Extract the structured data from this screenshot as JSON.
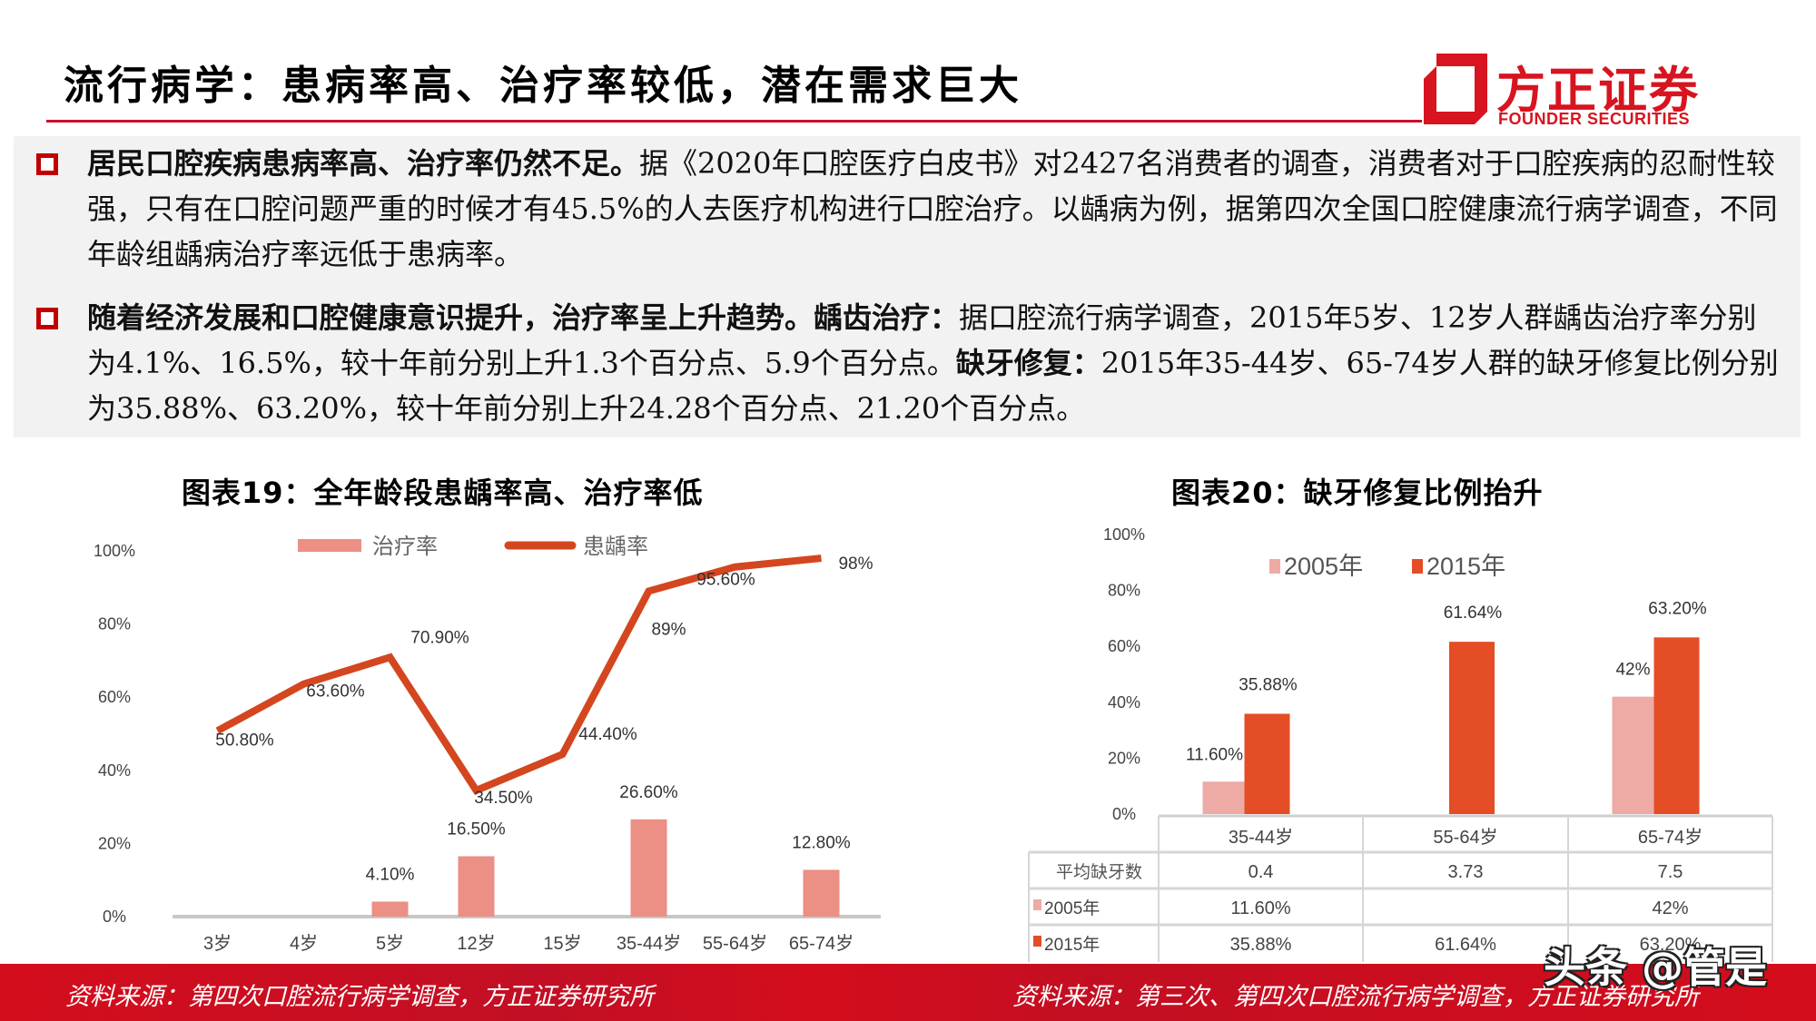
{
  "header": {
    "title": "流行病学：患病率高、治疗率较低，潜在需求巨大"
  },
  "logo": {
    "cn": "方正证券",
    "en": "FOUNDER SECURITIES",
    "color": "#d7141f"
  },
  "summary": {
    "bullets": [
      {
        "bold": "居民口腔疾病患病率高、治疗率仍然不足。",
        "text": "据《2020年口腔医疗白皮书》对2427名消费者的调查，消费者对于口腔疾病的忍耐性较强，只有在口腔问题严重的时候才有45.5%的人去医疗机构进行口腔治疗。以龋病为例，据第四次全国口腔健康流行病学调查，不同年龄组龋病治疗率远低于患病率。"
      },
      {
        "bold": "随着经济发展和口腔健康意识提升，治疗率呈上升趋势。",
        "bold2": "龋齿治疗：",
        "text2": "据口腔流行病学调查，2015年5岁、12岁人群龋齿治疗率分别为4.1%、16.5%，较十年前分别上升1.3个百分点、5.9个百分点。",
        "bold3": "缺牙修复：",
        "text3": "2015年35-44岁、65-74岁人群的缺牙修复比例分别为35.88%、63.20%，较十年前分别上升24.28个百分点、21.20个百分点。"
      }
    ]
  },
  "chart19": {
    "title": "图表19：全年龄段患龋率高、治疗率低",
    "source": "资料来源：第四次口腔流行病学调查，方正证券研究所"
  },
  "chart20": {
    "title": "图表20：缺牙修复比例抬升",
    "source": "资料来源：第三次、第四次口腔流行病学调查，方正证券研究所",
    "table": {
      "headers": [
        "",
        "35-44岁",
        "55-64岁",
        "65-74岁"
      ],
      "rows": [
        {
          "label": "平均缺牙数",
          "values": [
            "0.4",
            "3.73",
            "7.5"
          ]
        },
        {
          "label": "2005年",
          "values": [
            "11.60%",
            "",
            "42%"
          ]
        },
        {
          "label": "2015年",
          "values": [
            "35.88%",
            "61.64%",
            "63.20%"
          ]
        }
      ]
    }
  },
  "watermark": "头条 @管是",
  "colors": {
    "accent_red": "#c8102e",
    "bar_treatment": "#ec8f84",
    "line_caries": "#d4461f",
    "bar_2005": "#eeaaa4",
    "bar_2015": "#e44d26",
    "footer_red": "#d40d1c"
  },
  "chart_data": [
    {
      "type": "bar+line",
      "title": "图表19：全年龄段患龋率高、治疗率低",
      "categories": [
        "3岁",
        "4岁",
        "5岁",
        "12岁",
        "15岁",
        "35-44岁",
        "55-64岁",
        "65-74岁"
      ],
      "series": [
        {
          "name": "治疗率",
          "kind": "bar",
          "color": "#ec8f84",
          "values": [
            null,
            null,
            4.1,
            16.5,
            null,
            26.6,
            null,
            12.8
          ],
          "labels": [
            "",
            "",
            "4.10%",
            "16.50%",
            "",
            "26.60%",
            "",
            "12.80%"
          ]
        },
        {
          "name": "患龋率",
          "kind": "line",
          "color": "#d4461f",
          "values": [
            50.8,
            63.6,
            70.9,
            34.5,
            44.4,
            89.0,
            95.6,
            98.0
          ],
          "labels": [
            "50.80%",
            "63.60%",
            "70.90%",
            "34.50%",
            "44.40%",
            "89%",
            "95.60%",
            "98%"
          ]
        }
      ],
      "yticks": [
        "0%",
        "20%",
        "40%",
        "60%",
        "80%",
        "100%"
      ],
      "ylim": [
        0,
        100
      ],
      "legend_position": "top",
      "grid": false
    },
    {
      "type": "bar",
      "title": "图表20：缺牙修复比例抬升",
      "categories": [
        "35-44岁",
        "55-64岁",
        "65-74岁"
      ],
      "series": [
        {
          "name": "2005年",
          "color": "#eeaaa4",
          "values": [
            11.6,
            null,
            42.0
          ],
          "labels": [
            "11.60%",
            "",
            "42%"
          ]
        },
        {
          "name": "2015年",
          "color": "#e44d26",
          "values": [
            35.88,
            61.64,
            63.2
          ],
          "labels": [
            "35.88%",
            "61.64%",
            "63.20%"
          ]
        }
      ],
      "extra_row": {
        "name": "平均缺牙数",
        "values": [
          0.4,
          3.73,
          7.5
        ]
      },
      "yticks": [
        "0%",
        "20%",
        "40%",
        "60%",
        "80%",
        "100%"
      ],
      "ylim": [
        0,
        100
      ],
      "legend_position": "top",
      "grid": false
    }
  ]
}
